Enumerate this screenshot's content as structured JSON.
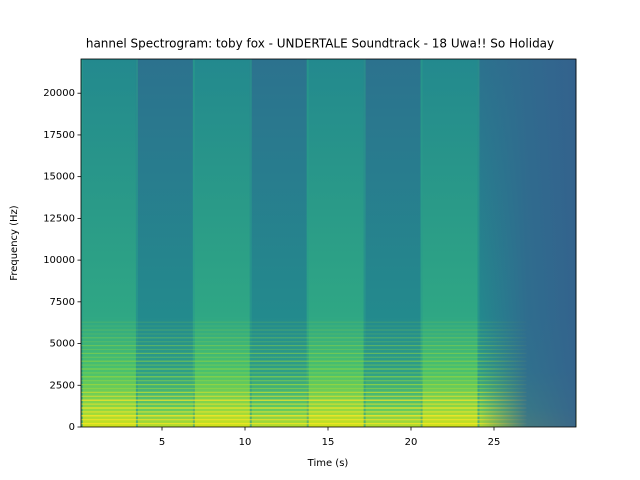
{
  "chart_data": {
    "type": "spectrogram",
    "title": "hannel Spectrogram: toby fox - UNDERTALE Soundtrack - 18 Uwa!! So Holiday",
    "x_label": "Time (s)",
    "y_label": "Frequency (Hz)",
    "xlim": [
      0.12,
      29.94
    ],
    "xticks": [
      5,
      10,
      15,
      20,
      25
    ],
    "ylim": [
      0,
      22050
    ],
    "yticks": [
      0,
      2500,
      5000,
      7500,
      10000,
      12500,
      15000,
      17500,
      20000
    ]
  }
}
